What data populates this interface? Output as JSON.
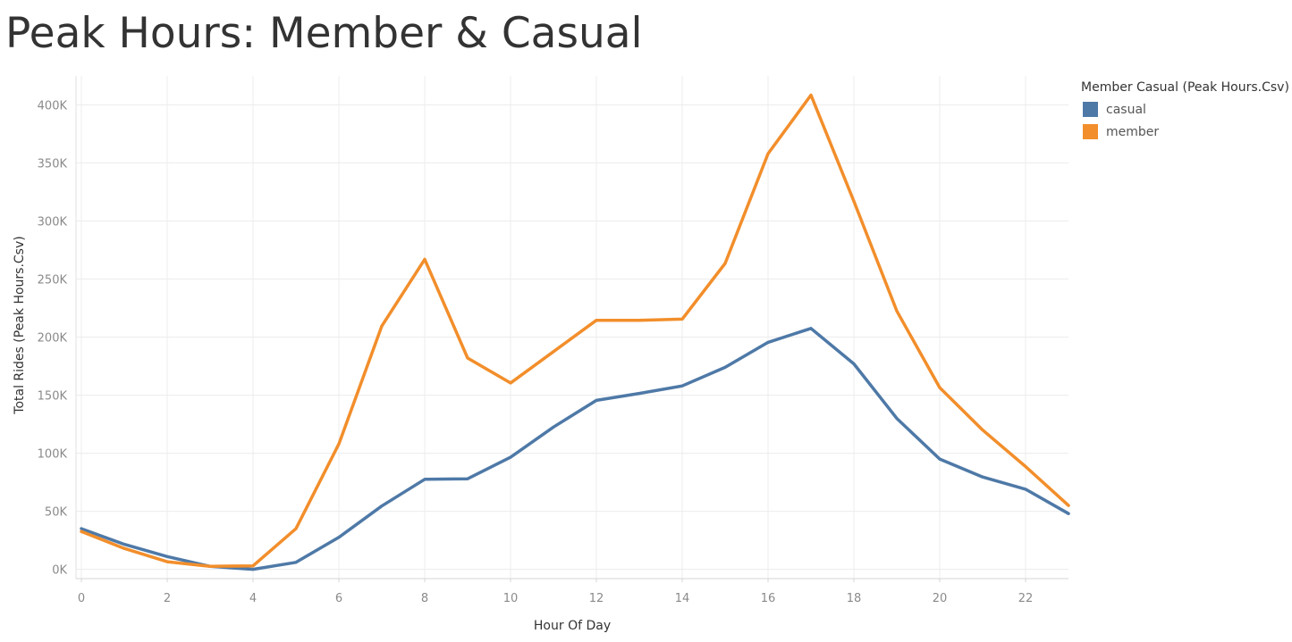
{
  "title": "Peak Hours: Member & Casual",
  "chart_data": {
    "type": "line",
    "xlabel": "Hour Of Day",
    "ylabel": "Total Rides (Peak Hours.Csv)",
    "xlim": [
      0,
      23
    ],
    "ylim": [
      -8000,
      425000
    ],
    "x_ticks": [
      0,
      2,
      4,
      6,
      8,
      10,
      12,
      14,
      16,
      18,
      20,
      22
    ],
    "y_ticks": [
      0,
      50000,
      100000,
      150000,
      200000,
      250000,
      300000,
      350000,
      400000
    ],
    "y_tick_labels": [
      "0K",
      "50K",
      "100K",
      "150K",
      "200K",
      "250K",
      "300K",
      "350K",
      "400K"
    ],
    "grid": true,
    "legend_position": "right",
    "legend_title": "Member Casual (Peak Hours.Csv)",
    "x": [
      0,
      1,
      2,
      3,
      4,
      5,
      6,
      7,
      8,
      9,
      10,
      11,
      12,
      13,
      14,
      15,
      16,
      17,
      18,
      19,
      20,
      21,
      22,
      23
    ],
    "series": [
      {
        "name": "casual",
        "color": "#4e79a7",
        "values": [
          35000,
          21500,
          11000,
          2500,
          0,
          6000,
          27500,
          54500,
          77500,
          78000,
          96500,
          122500,
          145500,
          151500,
          158000,
          174000,
          195500,
          207500,
          177000,
          130000,
          95000,
          79500,
          69000,
          48000
        ]
      },
      {
        "name": "member",
        "color": "#f28e2b",
        "values": [
          32500,
          18000,
          6500,
          2500,
          3000,
          35000,
          108000,
          209500,
          267000,
          182000,
          160500,
          187500,
          214500,
          214500,
          215500,
          263500,
          358000,
          408500,
          317000,
          222500,
          156500,
          120000,
          88500,
          55000
        ]
      }
    ]
  }
}
